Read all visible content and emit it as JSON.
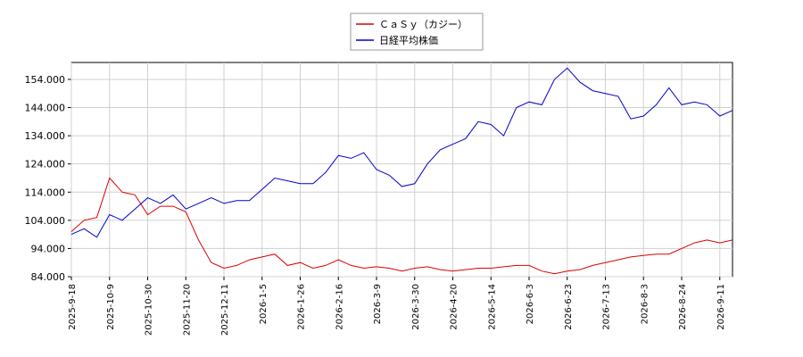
{
  "chart_data": {
    "type": "line",
    "categories": [
      "2025-9-18",
      null,
      null,
      "2025-10-9",
      null,
      null,
      "2025-10-30",
      null,
      null,
      "2025-11-20",
      null,
      null,
      "2025-12-11",
      null,
      null,
      "2026-1-5",
      null,
      null,
      "2026-1-26",
      null,
      null,
      "2026-2-16",
      null,
      null,
      "2026-3-9",
      null,
      null,
      "2026-3-30",
      null,
      null,
      "2026-4-20",
      null,
      null,
      "2026-5-14",
      null,
      null,
      "2026-6-3",
      null,
      null,
      "2026-6-23",
      null,
      null,
      "2026-7-13",
      null,
      null,
      "2026-8-3",
      null,
      null,
      "2026-8-24",
      null,
      null,
      "2026-9-11",
      null
    ],
    "series": [
      {
        "name": "ＣａＳｙ（カジー）",
        "color": "#dd0000",
        "values": [
          100,
          104,
          105,
          119,
          114,
          113,
          106,
          109,
          109,
          107,
          97,
          89,
          87,
          88,
          90,
          91,
          92,
          88,
          89,
          87,
          88,
          90,
          88,
          87,
          87.5,
          87,
          86,
          87,
          87.5,
          86.5,
          86,
          86.5,
          87,
          87,
          87.5,
          88,
          88,
          86,
          85,
          86,
          86.5,
          88,
          89,
          90,
          91,
          91.5,
          92,
          92,
          94,
          96,
          97,
          96,
          97
        ]
      },
      {
        "name": "日経平均株価",
        "color": "#0000cc",
        "values": [
          99,
          101,
          98,
          106,
          104,
          108,
          112,
          110,
          113,
          108,
          110,
          112,
          110,
          111,
          111,
          115,
          119,
          118,
          117,
          117,
          121,
          127,
          126,
          128,
          122,
          120,
          116,
          117,
          124,
          129,
          131,
          133,
          139,
          138,
          134,
          144,
          146,
          145,
          154,
          158,
          153,
          150,
          149,
          148,
          140,
          141,
          145,
          151,
          145,
          146,
          145,
          141,
          143
        ]
      }
    ],
    "ylim": [
      84,
      160
    ],
    "yticks": [
      {
        "value": 84,
        "label": "84.000"
      },
      {
        "value": 94,
        "label": "94.000"
      },
      {
        "value": 104,
        "label": "104.000"
      },
      {
        "value": 114,
        "label": "114.000"
      },
      {
        "value": 124,
        "label": "124.000"
      },
      {
        "value": 134,
        "label": "134.000"
      },
      {
        "value": 144,
        "label": "144.000"
      },
      {
        "value": 154,
        "label": "154.000"
      }
    ],
    "grid": true,
    "legend": "top"
  }
}
